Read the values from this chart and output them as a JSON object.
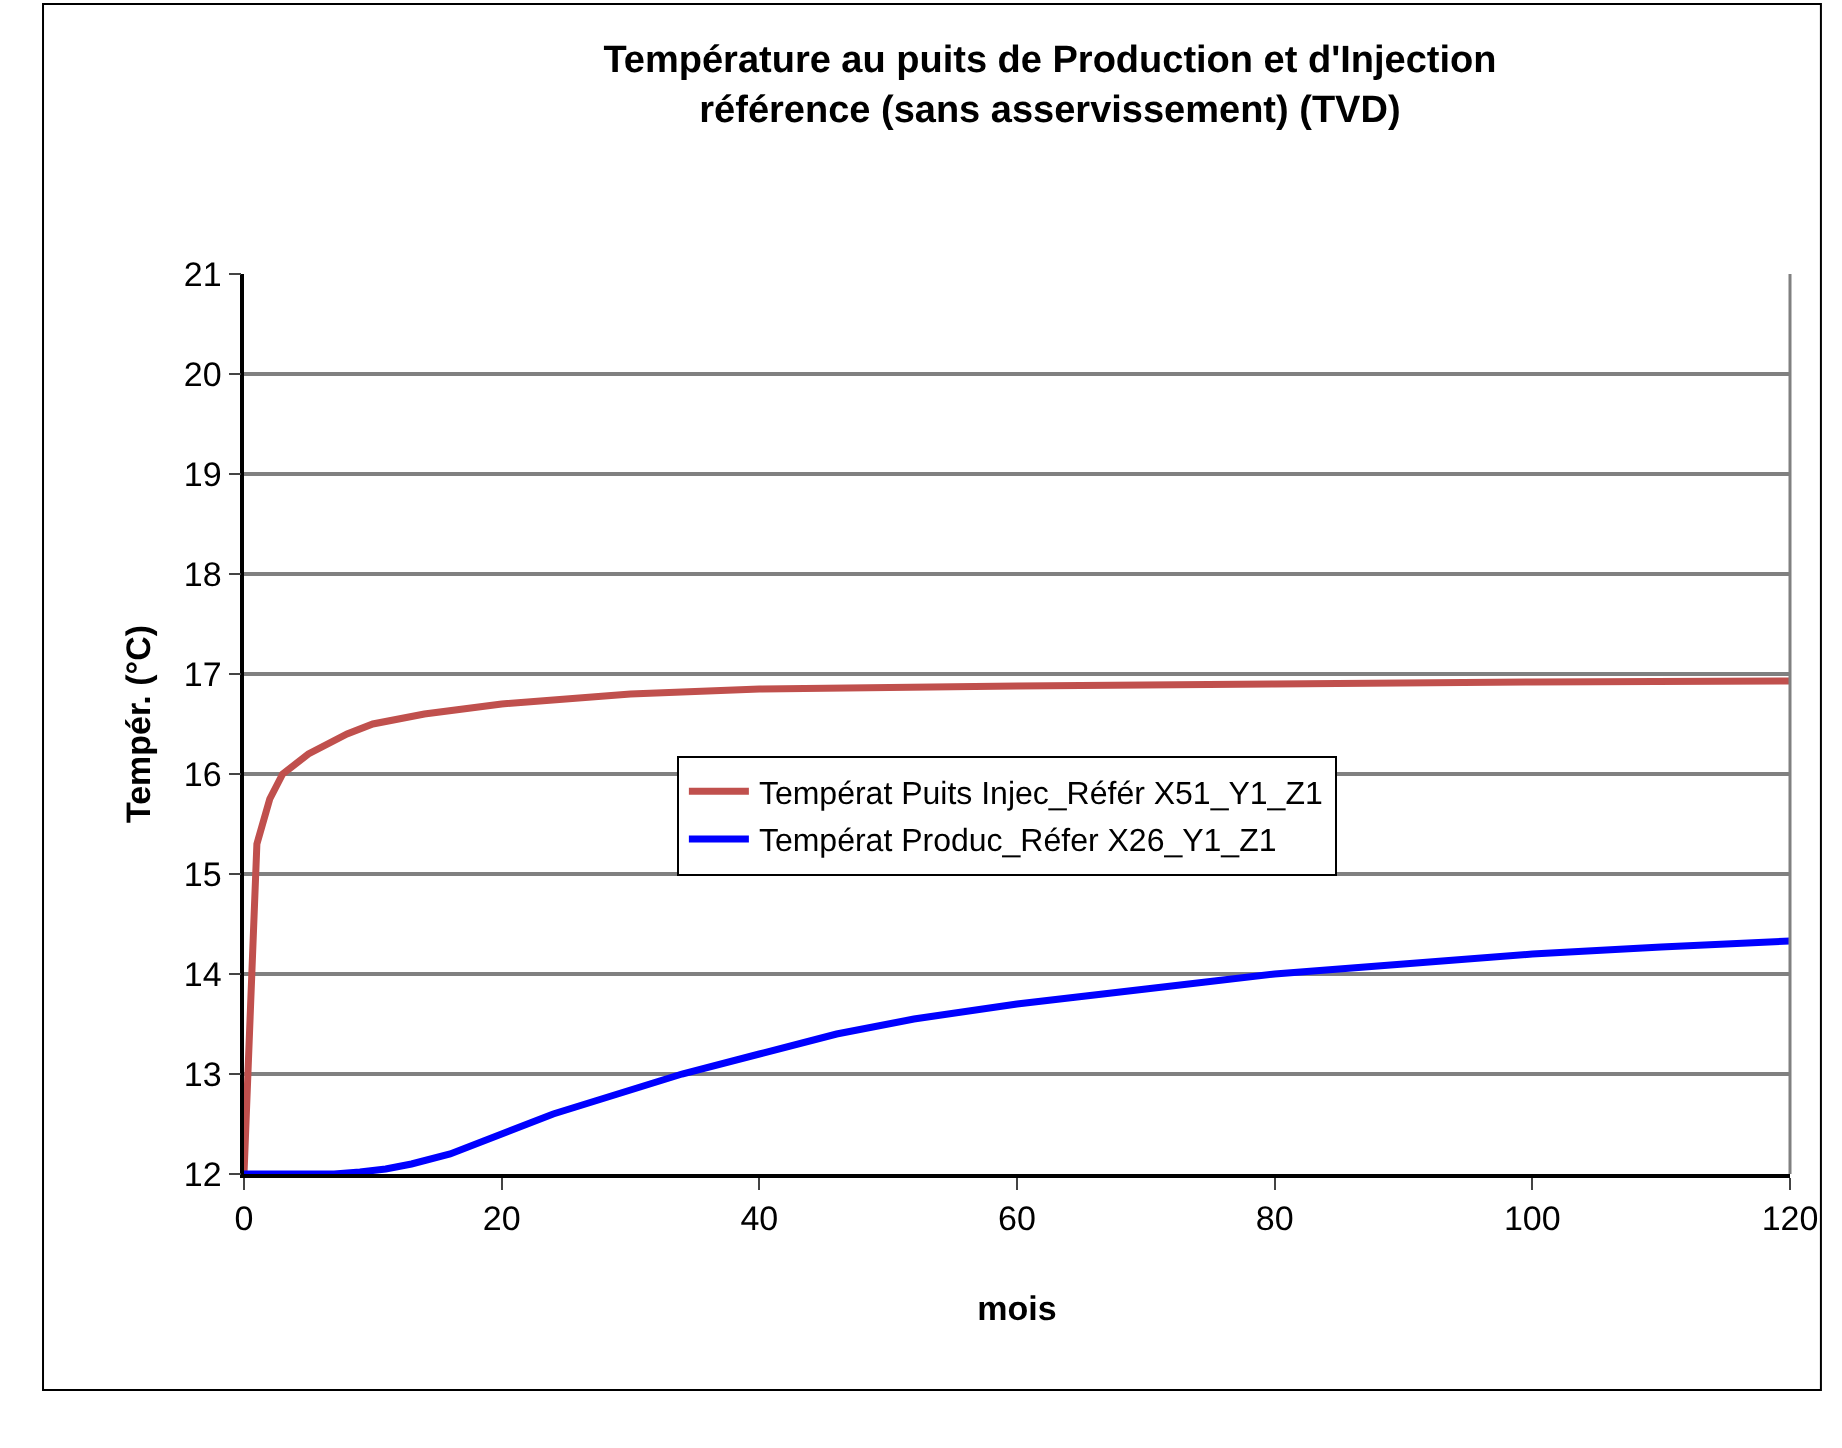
{
  "chart_data": {
    "type": "line",
    "title": "Température au puits de Production et d'Injection\nréférence (sans asservissement) (TVD)",
    "xlabel": "mois",
    "ylabel": "Tempér. (°C)",
    "xlim": [
      0,
      120
    ],
    "xticks": [
      0,
      20,
      40,
      60,
      80,
      100,
      120
    ],
    "ylim": [
      12,
      21
    ],
    "yticks": [
      12,
      13,
      14,
      15,
      16,
      17,
      18,
      19,
      20,
      21
    ],
    "grid": "y",
    "legend": "right",
    "marker": "none",
    "line_style": "solid",
    "series": [
      {
        "name": "Températ Puits Injec_Référ X51_Y1_Z1",
        "color": "#c0504d",
        "x": [
          0,
          1,
          2,
          3,
          5,
          8,
          10,
          14,
          20,
          30,
          40,
          60,
          80,
          100,
          120
        ],
        "values": [
          12,
          15.3,
          15.75,
          16.0,
          16.2,
          16.4,
          16.5,
          16.6,
          16.7,
          16.8,
          16.85,
          16.88,
          16.9,
          16.92,
          16.93
        ]
      },
      {
        "name": "Températ Produc_Réfer X26_Y1_Z1",
        "color": "#0000ff",
        "x": [
          0,
          5,
          7,
          9,
          11,
          13,
          16,
          20,
          24,
          29,
          34,
          40,
          46,
          52,
          60,
          70,
          80,
          90,
          100,
          110,
          120
        ],
        "values": [
          12,
          12,
          12,
          12.02,
          12.05,
          12.1,
          12.2,
          12.4,
          12.6,
          12.8,
          13.0,
          13.2,
          13.4,
          13.55,
          13.7,
          13.85,
          14.0,
          14.1,
          14.2,
          14.27,
          14.33
        ]
      }
    ]
  }
}
